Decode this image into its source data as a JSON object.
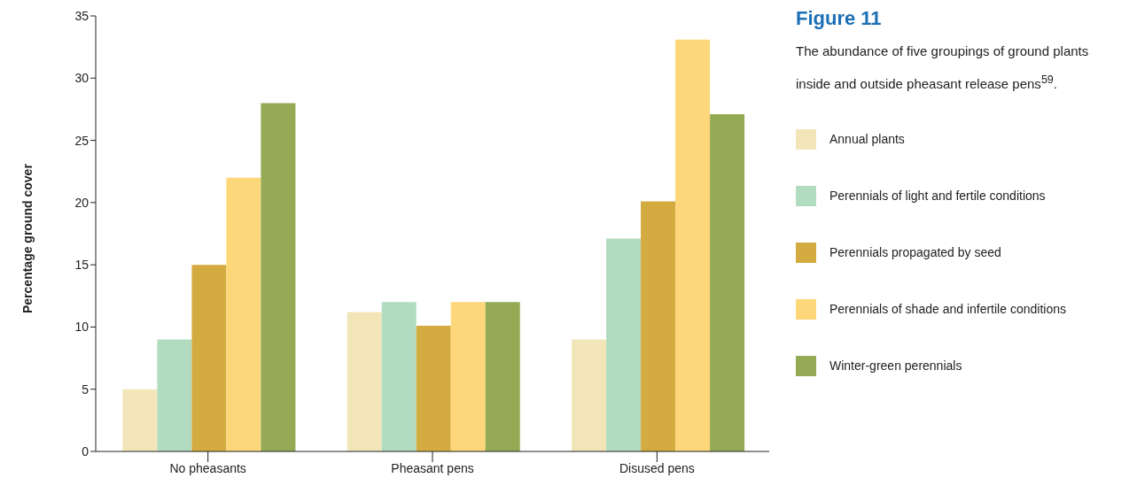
{
  "chart_data": {
    "type": "bar",
    "title": "Figure 11",
    "subtitle": "The abundance of five groupings of ground plants inside and outside pheasant release pens$^{59}$.",
    "ylabel": "Percentage ground cover",
    "categories": [
      "No pheasants",
      "Pheasant pens",
      "Disused pens"
    ],
    "series": [
      {
        "name": "Annual plants",
        "color": "#f2e6b9",
        "values": [
          5,
          11.2,
          9
        ]
      },
      {
        "name": "Perennials of light and fertile conditions",
        "color": "#b2dcc0",
        "values": [
          9,
          12,
          17.1
        ]
      },
      {
        "name": "Perennials propagated by seed",
        "color": "#d4ab40",
        "values": [
          15,
          10.1,
          20.1
        ]
      },
      {
        "name": "Perennials of shade and infertile conditions",
        "color": "#fdd77a",
        "values": [
          22,
          12,
          33.1
        ]
      },
      {
        "name": "Winter-green perennials",
        "color": "#95aa54",
        "values": [
          28,
          12,
          27.1
        ]
      }
    ],
    "ylim": [
      0,
      35
    ],
    "yticks": [
      0,
      5,
      10,
      15,
      20,
      25,
      30,
      35
    ],
    "grid": false,
    "legend": "right"
  }
}
